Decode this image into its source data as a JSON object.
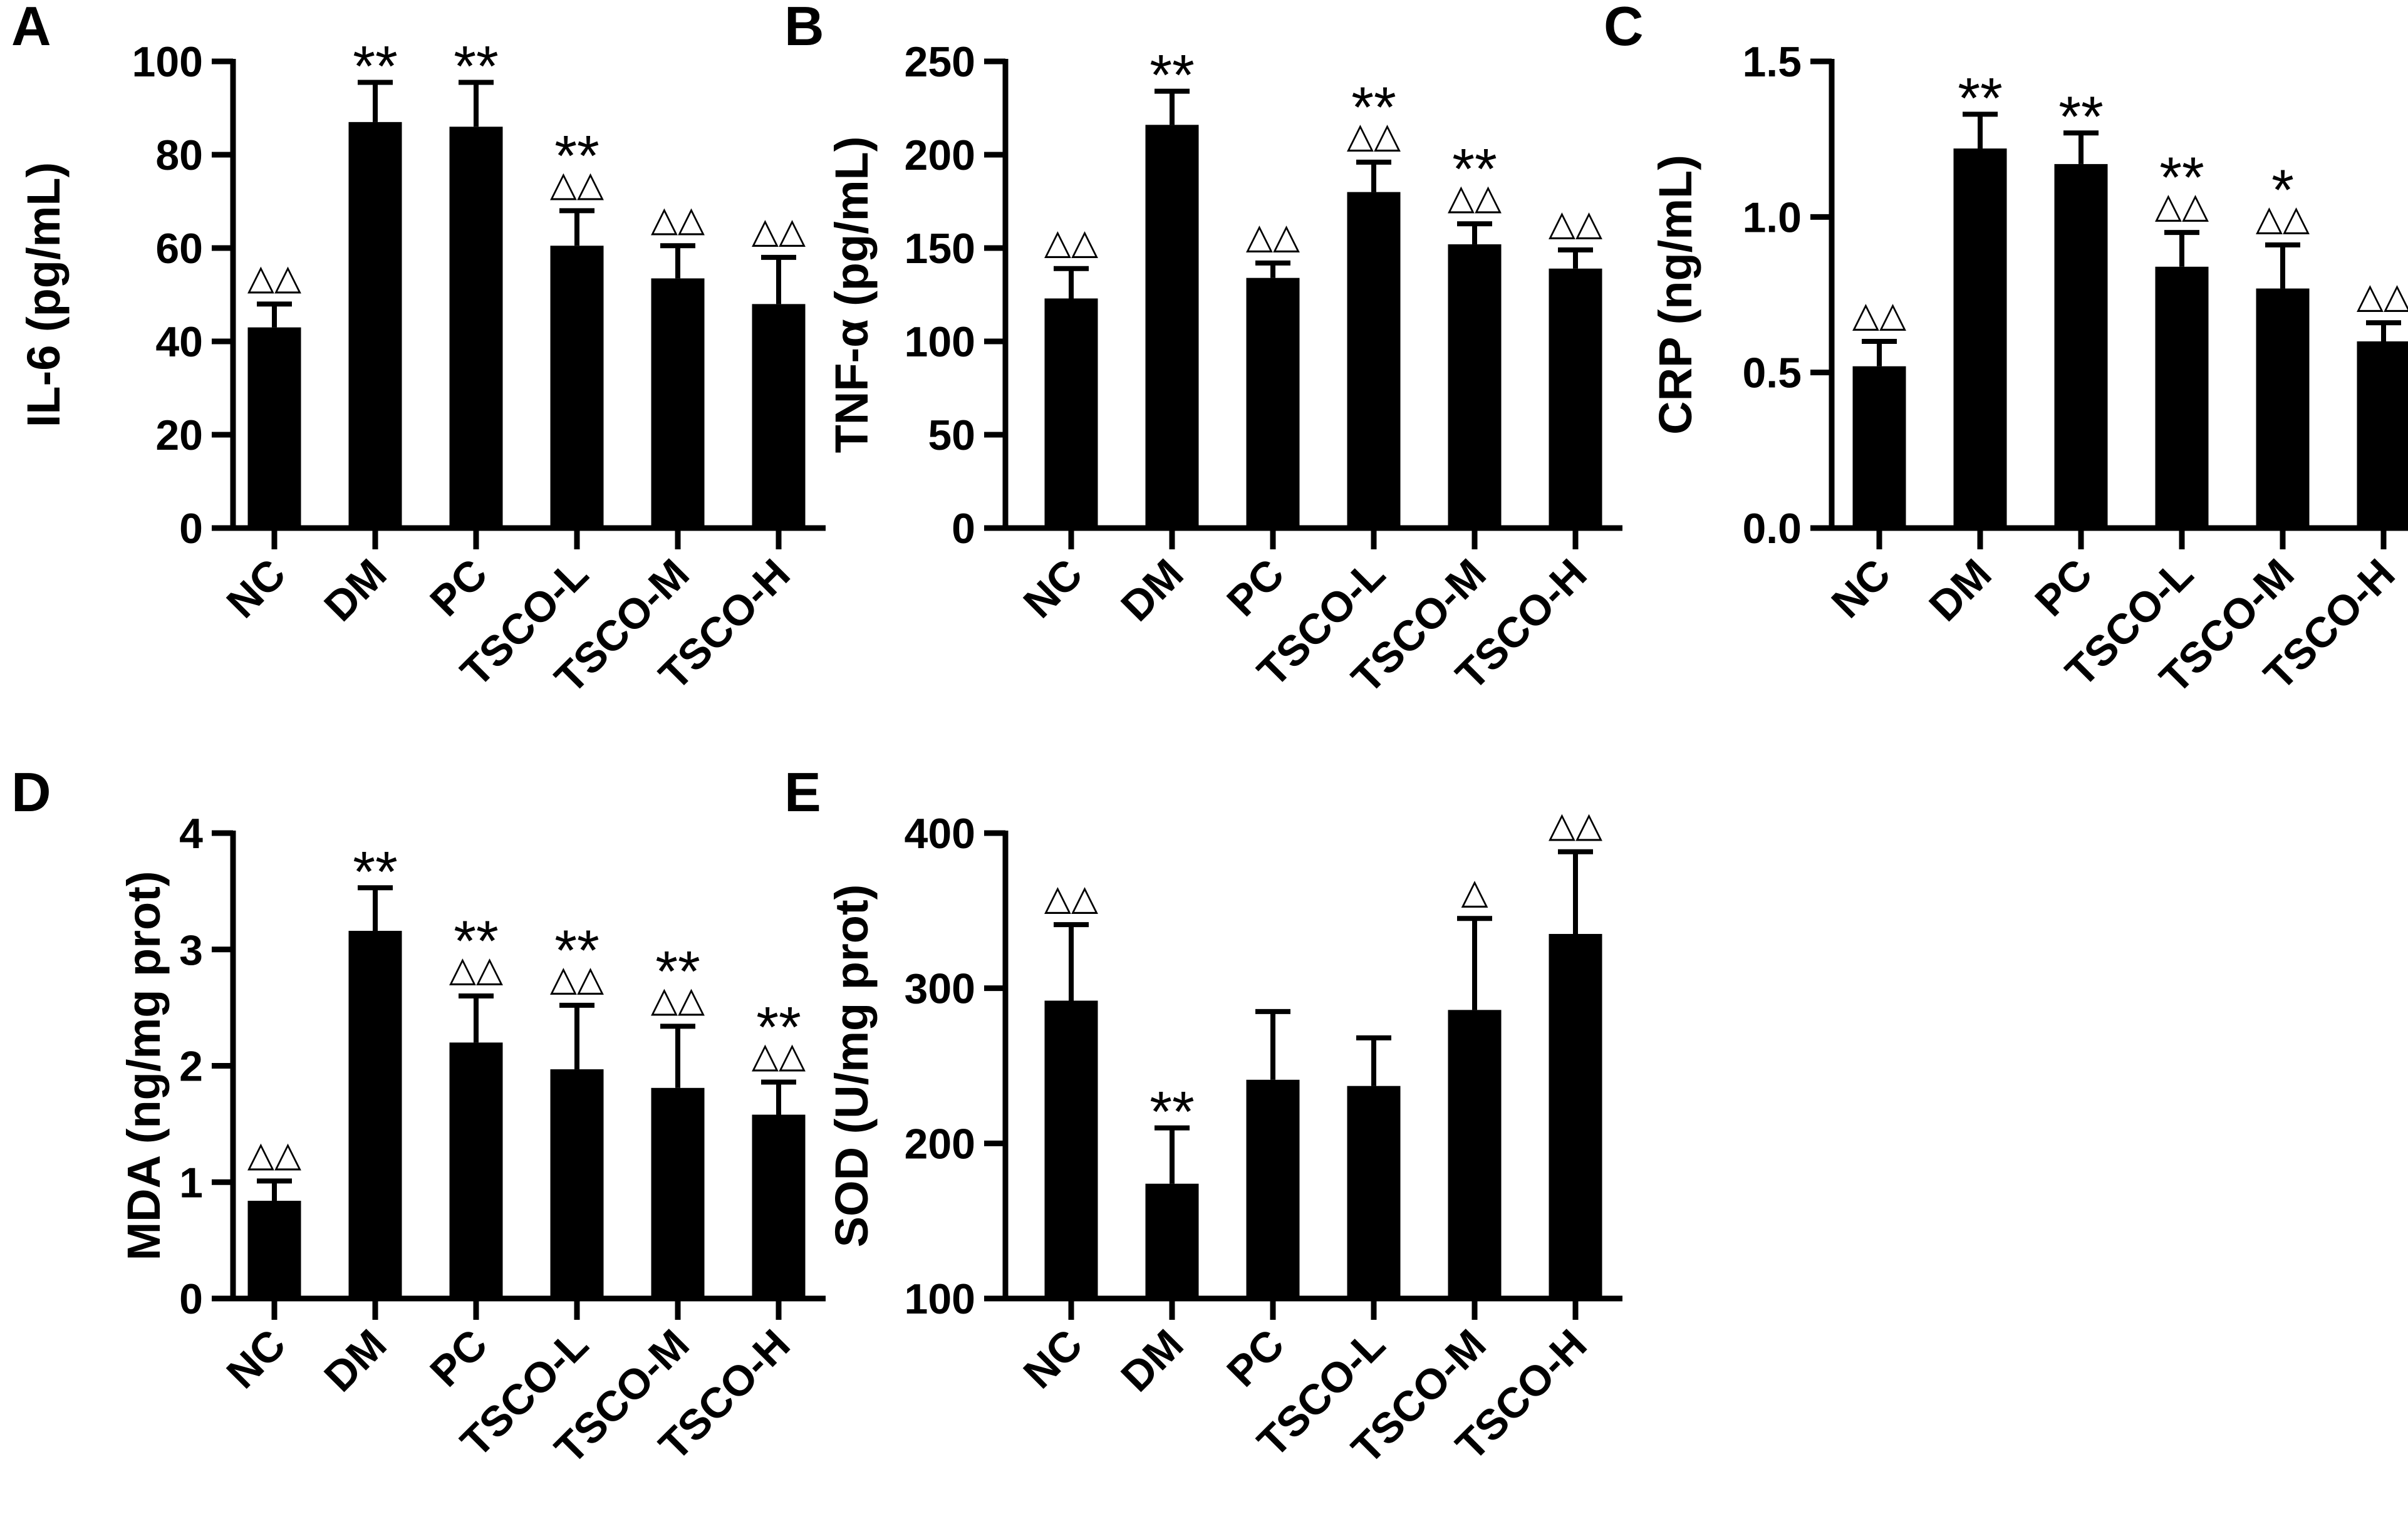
{
  "figure": {
    "bar_color": "#000000",
    "background": "#ffffff",
    "mark_labels": {
      "vs_nc": "*",
      "vs_dm": "△"
    }
  },
  "chart_data": [
    {
      "panel": "A",
      "type": "bar",
      "ylabel": "IL-6 (pg/mL)",
      "categories": [
        "NC",
        "DM",
        "PC",
        "TSCO-L",
        "TSCO-M",
        "TSCO-H"
      ],
      "values": [
        43,
        87,
        86,
        60.5,
        53.5,
        48
      ],
      "errors": [
        5,
        8.5,
        9.5,
        7.5,
        7,
        10
      ],
      "sig_vs_nc": [
        "",
        "**",
        "**",
        "**",
        "",
        ""
      ],
      "sig_vs_dm": [
        "△△",
        "",
        "",
        "△△",
        "△△",
        "△△"
      ],
      "ylim": [
        0,
        100
      ],
      "yticks": [
        0,
        20,
        40,
        60,
        80,
        100
      ],
      "ytick_labels": [
        "0",
        "20",
        "40",
        "60",
        "80",
        "100"
      ]
    },
    {
      "panel": "B",
      "type": "bar",
      "ylabel": "TNF-α (pg/mL)",
      "categories": [
        "NC",
        "DM",
        "PC",
        "TSCO-L",
        "TSCO-M",
        "TSCO-H"
      ],
      "values": [
        123,
        216,
        134,
        180,
        152,
        139
      ],
      "errors": [
        16,
        18,
        8,
        16,
        11,
        10
      ],
      "sig_vs_nc": [
        "",
        "**",
        "",
        "**",
        "**",
        ""
      ],
      "sig_vs_dm": [
        "△△",
        "",
        "△△",
        "△△",
        "△△",
        "△△"
      ],
      "ylim": [
        0,
        250
      ],
      "yticks": [
        0,
        50,
        100,
        150,
        200,
        250
      ],
      "ytick_labels": [
        "0",
        "50",
        "100",
        "150",
        "200",
        "250"
      ]
    },
    {
      "panel": "C",
      "type": "bar",
      "ylabel": "CRP (ng/mL)",
      "categories": [
        "NC",
        "DM",
        "PC",
        "TSCO-L",
        "TSCO-M",
        "TSCO-H"
      ],
      "values": [
        0.52,
        1.22,
        1.17,
        0.84,
        0.77,
        0.6
      ],
      "errors": [
        0.08,
        0.11,
        0.1,
        0.11,
        0.14,
        0.06
      ],
      "sig_vs_nc": [
        "",
        "**",
        "**",
        "**",
        "*",
        ""
      ],
      "sig_vs_dm": [
        "△△",
        "",
        "",
        "△△",
        "△△",
        "△△"
      ],
      "ylim": [
        0,
        1.5
      ],
      "yticks": [
        0,
        0.5,
        1.0,
        1.5
      ],
      "ytick_labels": [
        "0.0",
        "0.5",
        "1.0",
        "1.5"
      ]
    },
    {
      "panel": "D",
      "type": "bar",
      "ylabel": "MDA (ng/mg prot)",
      "categories": [
        "NC",
        "DM",
        "PC",
        "TSCO-L",
        "TSCO-M",
        "TSCO-H"
      ],
      "values": [
        0.84,
        3.16,
        2.2,
        1.97,
        1.81,
        1.58
      ],
      "errors": [
        0.17,
        0.37,
        0.4,
        0.55,
        0.53,
        0.28
      ],
      "sig_vs_nc": [
        "",
        "**",
        "**",
        "**",
        "**",
        "**"
      ],
      "sig_vs_dm": [
        "△△",
        "",
        "△△",
        "△△",
        "△△",
        "△△"
      ],
      "ylim": [
        0,
        4
      ],
      "yticks": [
        0,
        1,
        2,
        3,
        4
      ],
      "ytick_labels": [
        "0",
        "1",
        "2",
        "3",
        "4"
      ]
    },
    {
      "panel": "E",
      "type": "bar",
      "ylabel": "SOD (U/mg prot)",
      "categories": [
        "NC",
        "DM",
        "PC",
        "TSCO-L",
        "TSCO-M",
        "TSCO-H"
      ],
      "values": [
        292,
        174,
        241,
        237,
        286,
        335
      ],
      "errors": [
        49,
        36,
        44,
        31,
        59,
        53
      ],
      "sig_vs_nc": [
        "",
        "**",
        "",
        "",
        "",
        ""
      ],
      "sig_vs_dm": [
        "△△",
        "",
        "",
        "",
        "△",
        "△△"
      ],
      "ylim": [
        100,
        400
      ],
      "yticks": [
        100,
        200,
        300,
        400
      ],
      "ytick_labels": [
        "100",
        "200",
        "300",
        "400"
      ]
    }
  ]
}
